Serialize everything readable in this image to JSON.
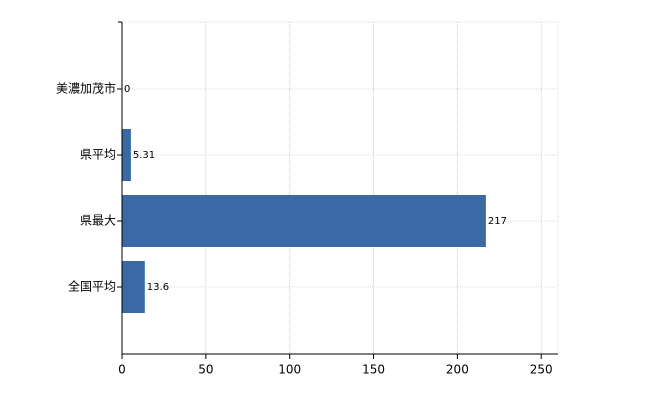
{
  "chart_data": {
    "type": "bar",
    "orientation": "horizontal",
    "categories": [
      "美濃加茂市",
      "県平均",
      "県最大",
      "全国平均"
    ],
    "values": [
      0,
      5.31,
      217,
      13.6
    ],
    "color": "#3a69a6",
    "xlim": [
      0,
      260
    ],
    "xticks": [
      0,
      50,
      100,
      150,
      200,
      250
    ],
    "grid": true
  }
}
